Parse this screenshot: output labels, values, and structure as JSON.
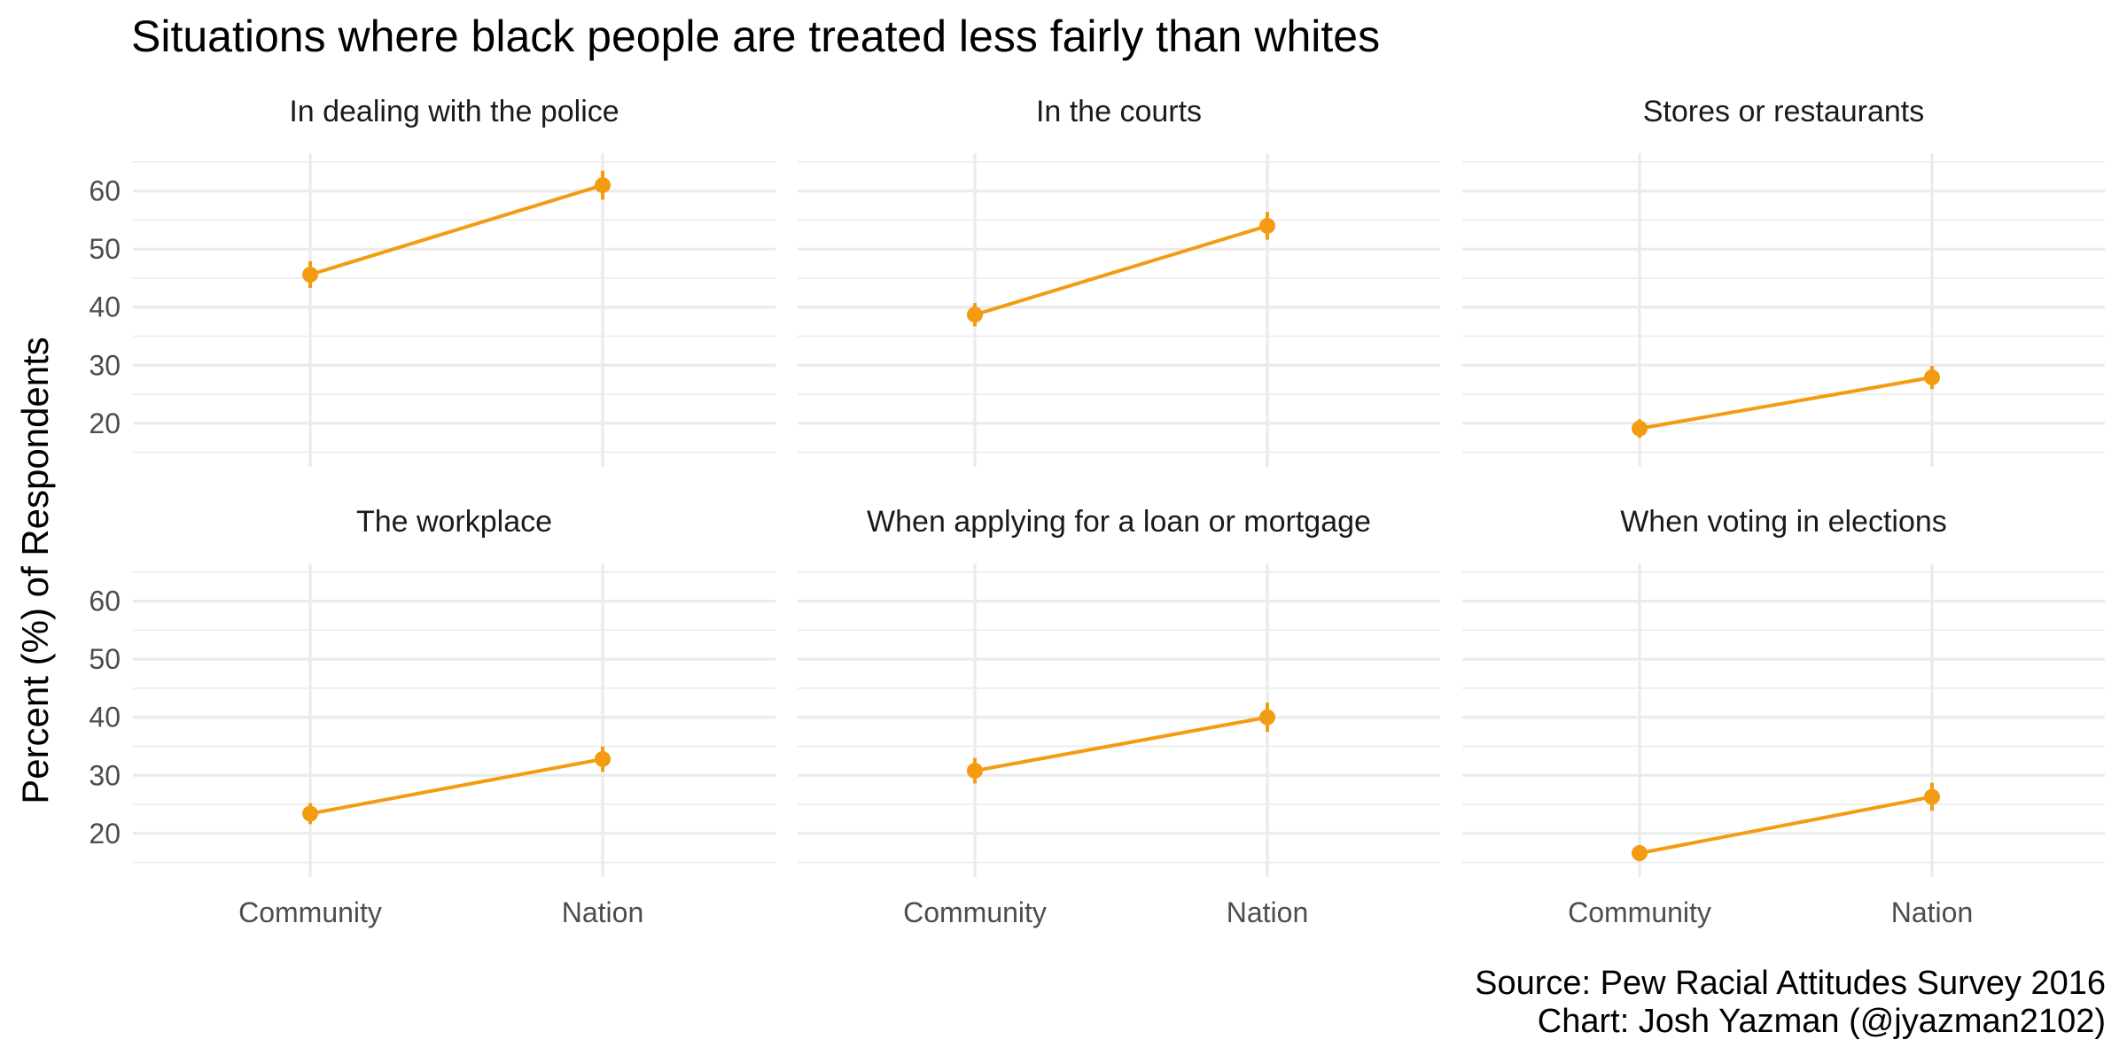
{
  "chart_data": {
    "type": "line",
    "title": "Situations where black people are treated less fairly than whites",
    "ylabel": "Percent (%) of Respondents",
    "xlabel": "",
    "categories": [
      "Community",
      "Nation"
    ],
    "ylim": [
      12.5,
      66.5
    ],
    "yticks": [
      20,
      30,
      40,
      50,
      60
    ],
    "grid": true,
    "series_color": "#F39C12",
    "panels": [
      {
        "name": "In dealing with the police",
        "values": [
          45.6,
          61.0
        ],
        "error": [
          2.3,
          2.5
        ]
      },
      {
        "name": "In the courts",
        "values": [
          38.7,
          54.0
        ],
        "error": [
          2.0,
          2.4
        ]
      },
      {
        "name": "Stores or restaurants",
        "values": [
          19.1,
          27.9
        ],
        "error": [
          1.6,
          2.0
        ]
      },
      {
        "name": "The workplace",
        "values": [
          23.4,
          32.8
        ],
        "error": [
          1.8,
          2.2
        ]
      },
      {
        "name": "When applying for a loan or mortgage",
        "values": [
          30.8,
          40.0
        ],
        "error": [
          2.2,
          2.5
        ]
      },
      {
        "name": "When voting in elections",
        "values": [
          16.6,
          26.3
        ],
        "error": [
          1.4,
          2.4
        ]
      }
    ],
    "caption": [
      "Source: Pew Racial Attitudes Survey 2016",
      "Chart: Josh Yazman (@jyazman2102)"
    ]
  }
}
